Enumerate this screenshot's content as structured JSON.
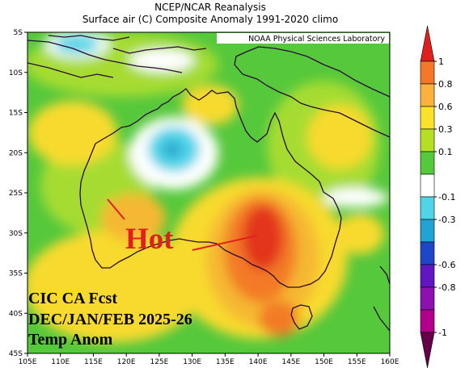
{
  "title_line1": "NCEP/NCAR Reanalysis",
  "title_line2": "Surface air (C) Composite Anomaly 1991-2020 climo",
  "credit": "NOAA Physical Sciences Laboratory",
  "latitude_labels": [
    "5S",
    "10S",
    "15S",
    "20S",
    "25S",
    "30S",
    "35S",
    "40S",
    "45S"
  ],
  "longitude_labels": [
    "105E",
    "110E",
    "115E",
    "120E",
    "125E",
    "130E",
    "135E",
    "140E",
    "145E",
    "150E",
    "155E",
    "160E"
  ],
  "colorbar": {
    "labels": [
      "1",
      "0.8",
      "0.6",
      "0.3",
      "0.1",
      "-0.1",
      "-0.3",
      "-0.6",
      "-0.8",
      "-1"
    ],
    "colors": [
      "#e0201c",
      "#f37828",
      "#f9b33c",
      "#fbe22a",
      "#b6de24",
      "#56c83c",
      "#ffffff",
      "#4fd4e8",
      "#21a4d4",
      "#1e46c8",
      "#6016c0",
      "#8d10b0",
      "#b0008a",
      "#64004a"
    ]
  },
  "annotation_hot": "Hot",
  "overlay_lines": [
    "CIC CA Fcst",
    "DEC/JAN/FEB 2025-26",
    "Temp Anom"
  ],
  "palette": {
    "green": "#56c83c",
    "light_green": "#a6dc30",
    "yellow": "#f8da2e",
    "gold": "#f5b830",
    "orange": "#f37a26",
    "red": "#e2341e",
    "cyan": "#4fd4e8",
    "teal": "#22a6cc"
  }
}
